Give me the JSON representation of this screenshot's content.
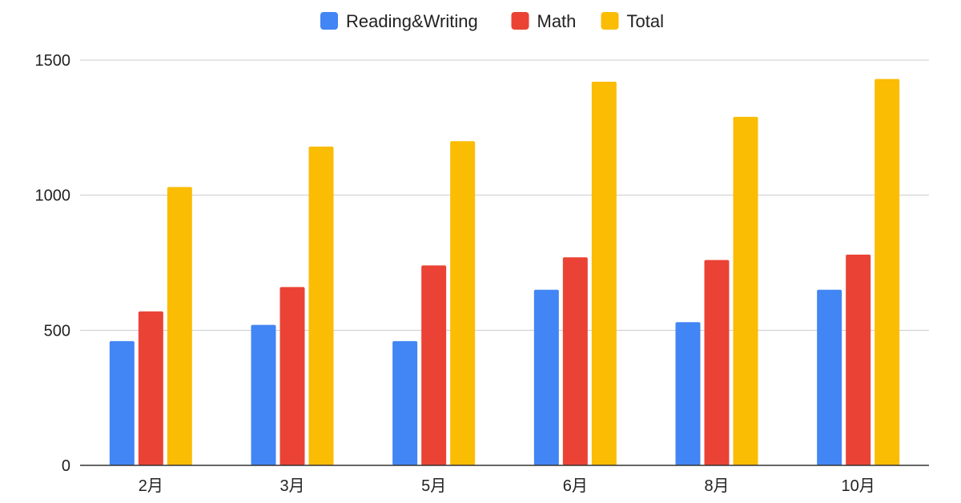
{
  "chart_data": {
    "type": "bar",
    "title": "",
    "xlabel": "",
    "ylabel": "",
    "categories": [
      "2月",
      "3月",
      "5月",
      "6月",
      "8月",
      "10月"
    ],
    "series": [
      {
        "name": "Reading&Writing",
        "color": "#4285F4",
        "values": [
          460,
          520,
          460,
          650,
          530,
          650
        ]
      },
      {
        "name": "Math",
        "color": "#EA4335",
        "values": [
          570,
          660,
          740,
          770,
          760,
          780
        ]
      },
      {
        "name": "Total",
        "color": "#FBBC04",
        "values": [
          1030,
          1180,
          1200,
          1420,
          1290,
          1430
        ]
      }
    ],
    "ylim": [
      0,
      1500
    ],
    "yticks": [
      0,
      500,
      1000,
      1500
    ],
    "ytick_labels": [
      "0",
      "500",
      "1000",
      "1500"
    ],
    "grid": true,
    "legend_position": "top-center"
  }
}
